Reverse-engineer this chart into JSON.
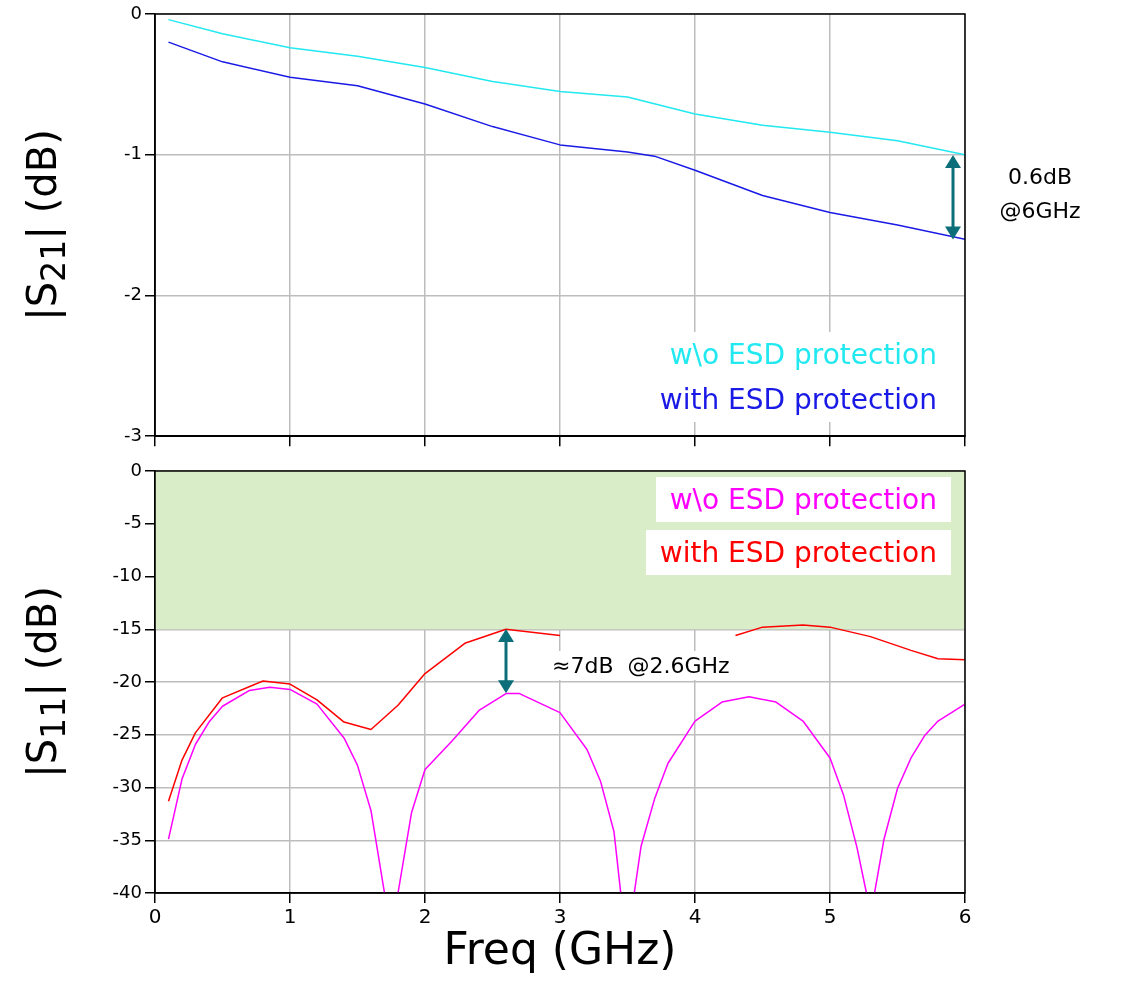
{
  "chart_data": [
    {
      "type": "line",
      "ylabel": "|S$_{21}$| (dB)",
      "xlim": [
        0,
        6
      ],
      "xticks": [
        0,
        1,
        2,
        3,
        4,
        5,
        6
      ],
      "ylim": [
        -3,
        0
      ],
      "yticks": [
        0,
        -1,
        -2,
        -3
      ],
      "tick_labels": "y",
      "grid": true,
      "legend": "bottom right",
      "marker": "none",
      "annotations": [
        {
          "text": "0.6dB @6GHz",
          "x": 6,
          "y": -1.0
        }
      ],
      "series": [
        {
          "name": "w\\o ESD protection",
          "color": "#22e8f0",
          "x": [
            0.1,
            0.5,
            1,
            1.5,
            2,
            2.5,
            3,
            3.5,
            4,
            4.5,
            5,
            5.5,
            6
          ],
          "values": [
            -0.04,
            -0.14,
            -0.24,
            -0.3,
            -0.38,
            -0.48,
            -0.55,
            -0.59,
            -0.71,
            -0.79,
            -0.84,
            -0.9,
            -1.0
          ]
        },
        {
          "name": "with ESD protection",
          "color": "#1a1ae6",
          "x": [
            0.1,
            0.5,
            1,
            1.5,
            2,
            2.5,
            3,
            3.5,
            3.7,
            4,
            4.5,
            5,
            5.5,
            6
          ],
          "values": [
            -0.2,
            -0.34,
            -0.45,
            -0.51,
            -0.64,
            -0.8,
            -0.93,
            -0.98,
            -1.01,
            -1.11,
            -1.29,
            -1.41,
            -1.5,
            -1.6
          ]
        }
      ]
    },
    {
      "type": "line",
      "xlabel": "Freq (GHz)",
      "ylabel": "|S$_{11}$| (dB)",
      "xlim": [
        0,
        6
      ],
      "xticks": [
        0,
        1,
        2,
        3,
        4,
        5,
        6
      ],
      "ylim": [
        -40,
        0
      ],
      "yticks": [
        0,
        -5,
        -10,
        -15,
        -20,
        -25,
        -30,
        -35,
        -40
      ],
      "grid": true,
      "legend": "top right",
      "marker": "none",
      "bands": [
        {
          "axis": "y",
          "from": -15,
          "to": 0,
          "color": "#d9eec8"
        }
      ],
      "annotations": [
        {
          "text": "≈7dB  @2.6GHz",
          "x": 2.6,
          "y": -15.0
        }
      ],
      "series": [
        {
          "name": "w\\o ESD protection",
          "color": "#ff00ff",
          "x": [
            0.1,
            0.2,
            0.3,
            0.4,
            0.5,
            0.7,
            0.85,
            1,
            1.2,
            1.4,
            1.5,
            1.6,
            1.7,
            1.75,
            1.8,
            1.9,
            2,
            2.2,
            2.4,
            2.6,
            2.7,
            3,
            3.2,
            3.3,
            3.4,
            3.45,
            3.5,
            3.55,
            3.6,
            3.7,
            3.8,
            4,
            4.2,
            4.4,
            4.6,
            4.8,
            5,
            5.1,
            5.2,
            5.27,
            5.3,
            5.33,
            5.4,
            5.5,
            5.6,
            5.7,
            5.8,
            6
          ],
          "values": [
            -34.9,
            -29.2,
            -25.9,
            -23.8,
            -22.3,
            -20.8,
            -20.5,
            -20.7,
            -22.1,
            -25.3,
            -27.9,
            -32.2,
            -40,
            null,
            -40,
            -32.4,
            -28.3,
            -25.6,
            -22.7,
            -21.1,
            -21.1,
            -22.9,
            -26.4,
            -29.4,
            -34.2,
            -40,
            null,
            -40,
            -35.6,
            -31.1,
            -27.7,
            -23.7,
            -21.9,
            -21.4,
            -21.9,
            -23.7,
            -27.2,
            -30.7,
            -35.7,
            -40,
            null,
            -40,
            -34.9,
            -30.1,
            -27.2,
            -25.1,
            -23.7,
            -22.1
          ]
        },
        {
          "name": "with ESD protection",
          "color": "#ff0000",
          "x": [
            0.1,
            0.2,
            0.3,
            0.5,
            0.8,
            1,
            1.2,
            1.4,
            1.6,
            1.8,
            2,
            2.3,
            2.6,
            3,
            3.5,
            4.3,
            4.5,
            4.8,
            5,
            5.3,
            5.6,
            5.8,
            6
          ],
          "values": [
            -31.3,
            -27.4,
            -24.8,
            -21.5,
            -19.9,
            -20.2,
            -21.7,
            -23.8,
            -24.5,
            -22.2,
            -19.2,
            -16.3,
            -15.0,
            -15.6,
            null,
            -15.6,
            -14.8,
            -14.6,
            -14.8,
            -15.7,
            -17.0,
            -17.8,
            -17.9
          ]
        }
      ]
    }
  ]
}
